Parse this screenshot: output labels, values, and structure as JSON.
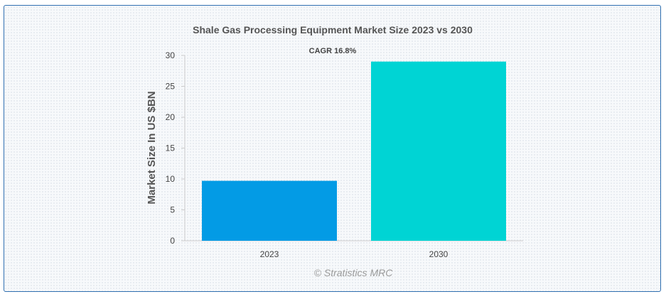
{
  "chart_data": {
    "type": "bar",
    "title": "Shale Gas Processing Equipment Market Size 2023 vs 2030",
    "subtitle": "CAGR 16.8%",
    "categories": [
      "2023",
      "2030"
    ],
    "values": [
      9.7,
      29.0
    ],
    "colors": [
      "#039be5",
      "#00d4d4"
    ],
    "xlabel": "",
    "ylabel": "Market Size In US $BN",
    "ylim": [
      0,
      30
    ],
    "yticks": [
      "0",
      "5",
      "10",
      "15",
      "20",
      "25",
      "30"
    ],
    "grid": false,
    "legend": "none",
    "credit": "© Stratistics MRC"
  }
}
